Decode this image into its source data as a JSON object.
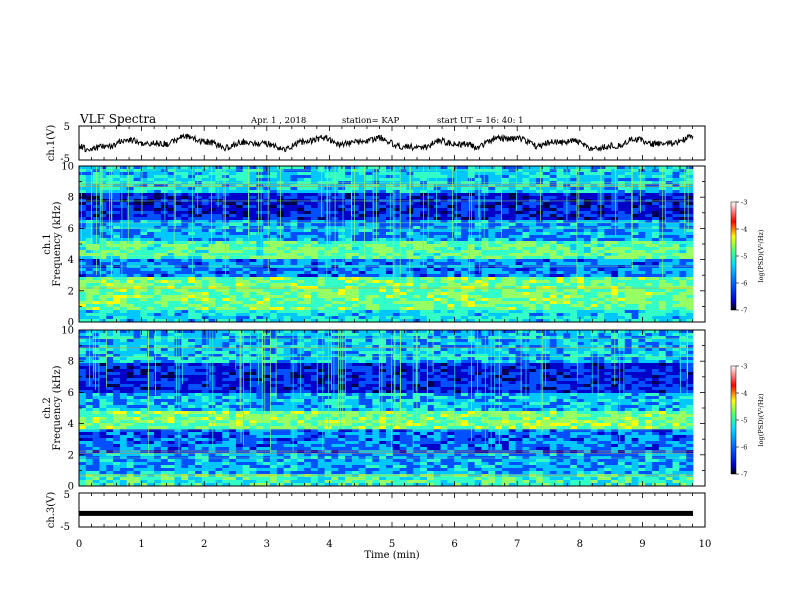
{
  "header": {
    "title": "VLF Spectra",
    "date": "Apr. 1  , 2018",
    "station": "station= KAP",
    "start_ut": "start  UT  =   16: 40: 1"
  },
  "chart_data": [
    {
      "type": "line",
      "panel": "ch1-waveform",
      "ylabel": "ch.1(V)",
      "ytick_labels": [
        "-5",
        "5"
      ],
      "ylim": [
        -5,
        5
      ],
      "xlim": [
        0,
        10
      ],
      "series_color": "#000000"
    },
    {
      "type": "heatmap",
      "panel": "ch1-spectrogram",
      "ylabel": "ch.1\nFrequency  (kHz)",
      "ytick_labels": [
        "0",
        "2",
        "4",
        "6",
        "8",
        "10"
      ],
      "ylim": [
        0,
        10
      ],
      "xlim": [
        0,
        10
      ],
      "colorbar": {
        "label": "log(PSD)(V²/Hz)",
        "ticks": [
          "-3",
          "-4",
          "-5",
          "-6",
          "-7"
        ],
        "range": [
          -7,
          -3
        ]
      }
    },
    {
      "type": "heatmap",
      "panel": "ch2-spectrogram",
      "ylabel": "ch.2\nFrequency  (kHz)",
      "ytick_labels": [
        "0",
        "2",
        "4",
        "6",
        "8",
        "10"
      ],
      "ylim": [
        0,
        10
      ],
      "xlim": [
        0,
        10
      ],
      "colorbar": {
        "label": "log(PSD)(V²/Hz)",
        "ticks": [
          "-3",
          "-4",
          "-5",
          "-6",
          "-7"
        ],
        "range": [
          -7,
          -3
        ]
      }
    },
    {
      "type": "line",
      "panel": "ch3-waveform",
      "ylabel": "ch.3(V)",
      "ytick_labels": [
        "-5",
        "5"
      ],
      "ylim": [
        -5,
        5
      ],
      "xlim": [
        0,
        10
      ],
      "values": [
        -1,
        -1
      ],
      "xlabel": "Time  (min)",
      "xtick_labels": [
        "0",
        "1",
        "2",
        "3",
        "4",
        "5",
        "6",
        "7",
        "8",
        "9",
        "10"
      ]
    }
  ],
  "colors": {
    "colormap": [
      "#000050",
      "#0000c8",
      "#0050ff",
      "#00c8ff",
      "#32ffc8",
      "#96ff64",
      "#ffff00",
      "#ff8c00",
      "#ff0000",
      "#ffffff"
    ]
  }
}
